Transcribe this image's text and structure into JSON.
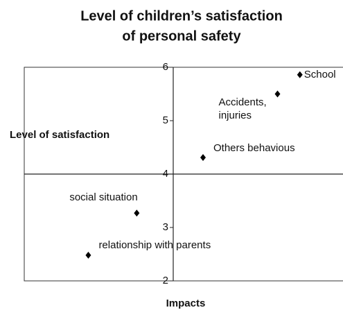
{
  "chart_data": {
    "type": "scatter",
    "title": [
      "Level of children’s satisfaction",
      "of personal safety"
    ],
    "ylabel": "Level of satisfaction",
    "xlabel": "Impacts",
    "categories": [
      "School",
      "Accidents, injuries",
      "Others behavious",
      "social situation",
      "relationship with parents"
    ],
    "x": [
      5.7,
      5.4,
      4.4,
      3.51,
      2.86
    ],
    "values": [
      5.86,
      5.5,
      4.31,
      3.27,
      2.48
    ],
    "color": "#000000",
    "xlim": [
      2,
      6
    ],
    "ylim": [
      2,
      6
    ],
    "yticks": [
      2,
      3,
      4,
      5,
      6
    ]
  }
}
